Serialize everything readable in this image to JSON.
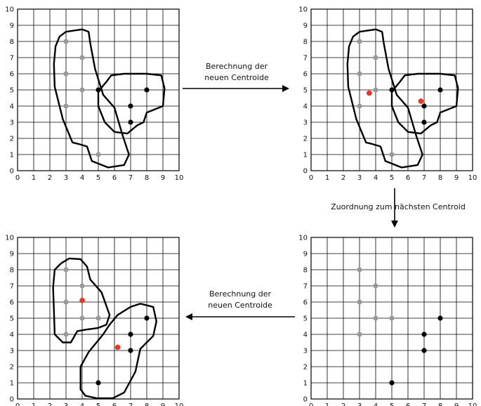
{
  "colors": {
    "gray_point": "#999999",
    "black_point": "#000000",
    "centroid": "#ee3322"
  },
  "axis_ticks": [
    "0",
    "1",
    "2",
    "3",
    "4",
    "5",
    "6",
    "7",
    "8",
    "9",
    "10"
  ],
  "arrows": {
    "top_label_line1": "Berechnung der",
    "top_label_line2": "neuen Centroide",
    "right_label": "Zuordnung zum nächsten Centroid",
    "bottom_label_line1": "Berechnung der",
    "bottom_label_line2": "neuen Centroide"
  },
  "chart_data": [
    {
      "type": "scatter",
      "id": "top-left",
      "xlim": [
        0,
        10
      ],
      "ylim": [
        0,
        10
      ],
      "grid": true,
      "gray_points": [
        [
          3,
          8
        ],
        [
          4,
          7
        ],
        [
          3,
          6
        ],
        [
          4,
          5
        ],
        [
          3,
          4
        ],
        [
          5,
          1
        ]
      ],
      "black_points": [
        [
          5,
          5
        ],
        [
          8,
          5
        ],
        [
          7,
          4
        ],
        [
          7,
          3
        ]
      ],
      "centroids": [],
      "clusters": [
        [
          [
            3.0,
            8.6
          ],
          [
            4.0,
            8.75
          ],
          [
            4.4,
            8.6
          ],
          [
            4.5,
            7.9
          ],
          [
            4.8,
            6.3
          ],
          [
            5.3,
            4.7
          ],
          [
            6.0,
            3.9
          ],
          [
            6.5,
            2.2
          ],
          [
            6.9,
            1.0
          ],
          [
            6.6,
            0.35
          ],
          [
            5.6,
            0.2
          ],
          [
            4.6,
            0.6
          ],
          [
            4.3,
            1.5
          ],
          [
            3.8,
            1.65
          ],
          [
            3.4,
            1.75
          ],
          [
            2.8,
            3.2
          ],
          [
            2.3,
            5.2
          ],
          [
            2.25,
            6.6
          ],
          [
            2.35,
            7.7
          ],
          [
            2.6,
            8.3
          ],
          [
            3.0,
            8.6
          ]
        ],
        [
          [
            5.5,
            5.5
          ],
          [
            5.8,
            5.9
          ],
          [
            6.6,
            6.0
          ],
          [
            8.0,
            6.0
          ],
          [
            8.9,
            5.9
          ],
          [
            9.1,
            5.1
          ],
          [
            9.0,
            4.0
          ],
          [
            8.0,
            3.6
          ],
          [
            7.8,
            3.0
          ],
          [
            7.4,
            2.8
          ],
          [
            6.8,
            2.3
          ],
          [
            6.0,
            2.4
          ],
          [
            5.4,
            3.0
          ],
          [
            5.0,
            4.0
          ],
          [
            5.0,
            4.9
          ],
          [
            5.5,
            5.5
          ]
        ]
      ]
    },
    {
      "type": "scatter",
      "id": "top-right",
      "xlim": [
        0,
        10
      ],
      "ylim": [
        0,
        10
      ],
      "grid": true,
      "gray_points": [
        [
          3,
          8
        ],
        [
          4,
          7
        ],
        [
          3,
          6
        ],
        [
          4,
          5
        ],
        [
          3,
          4
        ],
        [
          5,
          1
        ]
      ],
      "black_points": [
        [
          5,
          5
        ],
        [
          8,
          5
        ],
        [
          7,
          4
        ],
        [
          7,
          3
        ]
      ],
      "centroids": [
        [
          3.6,
          4.8
        ],
        [
          6.8,
          4.3
        ]
      ],
      "clusters": [
        [
          [
            3.0,
            8.6
          ],
          [
            4.0,
            8.75
          ],
          [
            4.4,
            8.6
          ],
          [
            4.5,
            7.9
          ],
          [
            4.8,
            6.3
          ],
          [
            5.3,
            4.7
          ],
          [
            6.0,
            3.9
          ],
          [
            6.5,
            2.2
          ],
          [
            6.9,
            1.0
          ],
          [
            6.6,
            0.35
          ],
          [
            5.6,
            0.2
          ],
          [
            4.6,
            0.6
          ],
          [
            4.3,
            1.5
          ],
          [
            3.8,
            1.65
          ],
          [
            3.4,
            1.75
          ],
          [
            2.8,
            3.2
          ],
          [
            2.3,
            5.2
          ],
          [
            2.25,
            6.6
          ],
          [
            2.35,
            7.7
          ],
          [
            2.6,
            8.3
          ],
          [
            3.0,
            8.6
          ]
        ],
        [
          [
            5.5,
            5.5
          ],
          [
            5.8,
            5.9
          ],
          [
            6.6,
            6.0
          ],
          [
            8.0,
            6.0
          ],
          [
            8.9,
            5.9
          ],
          [
            9.1,
            5.1
          ],
          [
            9.0,
            4.0
          ],
          [
            8.0,
            3.6
          ],
          [
            7.8,
            3.0
          ],
          [
            7.4,
            2.8
          ],
          [
            6.8,
            2.3
          ],
          [
            6.0,
            2.4
          ],
          [
            5.4,
            3.0
          ],
          [
            5.0,
            4.0
          ],
          [
            5.0,
            4.9
          ],
          [
            5.5,
            5.5
          ]
        ]
      ]
    },
    {
      "type": "scatter",
      "id": "bottom-left",
      "xlim": [
        0,
        10
      ],
      "ylim": [
        0,
        10
      ],
      "grid": true,
      "gray_points": [
        [
          3,
          8
        ],
        [
          4,
          7
        ],
        [
          3,
          6
        ],
        [
          4,
          5
        ],
        [
          5,
          5
        ],
        [
          3,
          4
        ]
      ],
      "black_points": [
        [
          8,
          5
        ],
        [
          7,
          4
        ],
        [
          7,
          3
        ],
        [
          5,
          1
        ]
      ],
      "centroids": [
        [
          4,
          6.1
        ],
        [
          6.2,
          3.2
        ]
      ],
      "clusters": [
        [
          [
            2.7,
            8.4
          ],
          [
            3.2,
            8.7
          ],
          [
            3.9,
            8.65
          ],
          [
            4.3,
            8.2
          ],
          [
            4.5,
            7.4
          ],
          [
            5.2,
            6.6
          ],
          [
            5.7,
            5.2
          ],
          [
            5.5,
            4.6
          ],
          [
            5.0,
            4.4
          ],
          [
            4.3,
            4.3
          ],
          [
            3.7,
            4.2
          ],
          [
            3.3,
            3.5
          ],
          [
            2.8,
            3.5
          ],
          [
            2.3,
            4.0
          ],
          [
            2.25,
            5.5
          ],
          [
            2.2,
            6.9
          ],
          [
            2.3,
            8.0
          ],
          [
            2.7,
            8.4
          ]
        ],
        [
          [
            7.6,
            5.9
          ],
          [
            8.4,
            5.7
          ],
          [
            8.6,
            4.8
          ],
          [
            8.4,
            3.9
          ],
          [
            8.1,
            3.6
          ],
          [
            7.6,
            3.1
          ],
          [
            7.3,
            1.7
          ],
          [
            6.6,
            0.4
          ],
          [
            5.9,
            0.05
          ],
          [
            4.9,
            0.05
          ],
          [
            4.2,
            0.2
          ],
          [
            3.9,
            0.6
          ],
          [
            3.9,
            2.0
          ],
          [
            4.4,
            2.9
          ],
          [
            5.3,
            4.0
          ],
          [
            5.7,
            4.6
          ],
          [
            6.2,
            5.2
          ],
          [
            7.0,
            5.7
          ],
          [
            7.6,
            5.9
          ]
        ]
      ]
    },
    {
      "type": "scatter",
      "id": "bottom-right",
      "xlim": [
        0,
        10
      ],
      "ylim": [
        0,
        10
      ],
      "grid": true,
      "gray_points": [
        [
          3,
          8
        ],
        [
          4,
          7
        ],
        [
          3,
          6
        ],
        [
          4,
          5
        ],
        [
          5,
          5
        ],
        [
          3,
          4
        ]
      ],
      "black_points": [
        [
          8,
          5
        ],
        [
          7,
          4
        ],
        [
          7,
          3
        ],
        [
          5,
          1
        ]
      ],
      "centroids": [],
      "clusters": []
    }
  ]
}
